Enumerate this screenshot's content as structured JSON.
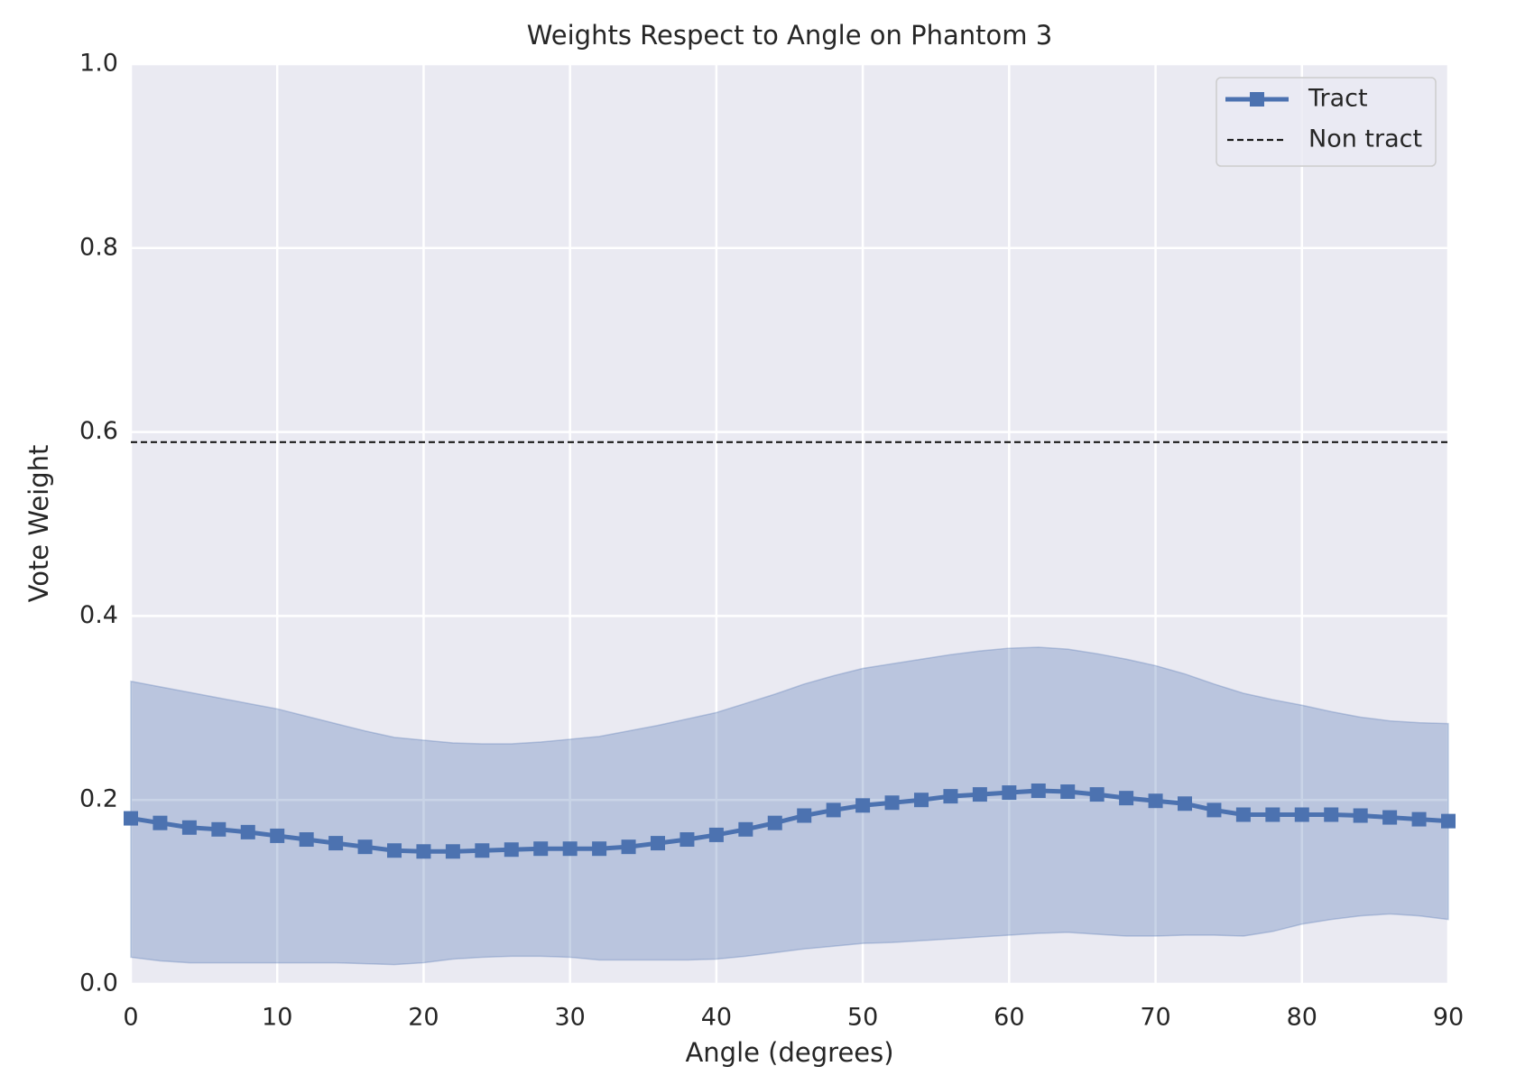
{
  "chart_data": {
    "type": "line",
    "title": "Weights Respect to Angle on Phantom 3",
    "xlabel": "Angle (degrees)",
    "ylabel": "Vote Weight",
    "x": [
      0,
      2,
      4,
      6,
      8,
      10,
      12,
      14,
      16,
      18,
      20,
      22,
      24,
      26,
      28,
      30,
      32,
      34,
      36,
      38,
      40,
      42,
      44,
      46,
      48,
      50,
      52,
      54,
      56,
      58,
      60,
      62,
      64,
      66,
      68,
      70,
      72,
      74,
      76,
      78,
      80,
      82,
      84,
      86,
      88,
      90
    ],
    "series": [
      {
        "name": "Tract",
        "color": "#4c72b0",
        "marker": "square",
        "values": [
          0.18,
          0.175,
          0.17,
          0.168,
          0.165,
          0.161,
          0.157,
          0.153,
          0.149,
          0.145,
          0.144,
          0.144,
          0.145,
          0.146,
          0.147,
          0.147,
          0.147,
          0.149,
          0.153,
          0.157,
          0.162,
          0.168,
          0.175,
          0.183,
          0.189,
          0.194,
          0.197,
          0.2,
          0.204,
          0.206,
          0.208,
          0.21,
          0.209,
          0.206,
          0.202,
          0.199,
          0.196,
          0.189,
          0.184,
          0.184,
          0.184,
          0.184,
          0.183,
          0.181,
          0.179,
          0.177
        ],
        "band_upper": [
          0.329,
          0.323,
          0.317,
          0.311,
          0.305,
          0.299,
          0.291,
          0.283,
          0.275,
          0.268,
          0.265,
          0.262,
          0.261,
          0.261,
          0.263,
          0.266,
          0.269,
          0.275,
          0.281,
          0.288,
          0.295,
          0.305,
          0.315,
          0.326,
          0.335,
          0.343,
          0.348,
          0.353,
          0.358,
          0.362,
          0.365,
          0.366,
          0.364,
          0.359,
          0.353,
          0.346,
          0.337,
          0.326,
          0.316,
          0.309,
          0.303,
          0.296,
          0.29,
          0.286,
          0.284,
          0.283
        ],
        "band_lower": [
          0.029,
          0.025,
          0.023,
          0.023,
          0.023,
          0.023,
          0.023,
          0.023,
          0.022,
          0.021,
          0.023,
          0.027,
          0.029,
          0.03,
          0.03,
          0.029,
          0.026,
          0.026,
          0.026,
          0.026,
          0.027,
          0.03,
          0.034,
          0.038,
          0.041,
          0.044,
          0.045,
          0.047,
          0.049,
          0.051,
          0.053,
          0.055,
          0.056,
          0.054,
          0.052,
          0.052,
          0.053,
          0.053,
          0.052,
          0.057,
          0.065,
          0.07,
          0.074,
          0.076,
          0.074,
          0.07
        ]
      },
      {
        "name": "Non tract",
        "color": "#1a1a1a",
        "dashed": true,
        "value": 0.589
      }
    ],
    "xlim": [
      0,
      90
    ],
    "xticks": [
      0,
      10,
      20,
      30,
      40,
      50,
      60,
      70,
      80,
      90
    ],
    "ylim": [
      0,
      1
    ],
    "yticks": [
      {
        "value": 0,
        "label": "0.0"
      },
      {
        "value": 0.2,
        "label": "0.2"
      },
      {
        "value": 0.4,
        "label": "0.4"
      },
      {
        "value": 0.6,
        "label": "0.6"
      },
      {
        "value": 0.8,
        "label": "0.8"
      },
      {
        "value": 1,
        "label": "1.0"
      }
    ],
    "grid": true,
    "legend": "upper right"
  }
}
